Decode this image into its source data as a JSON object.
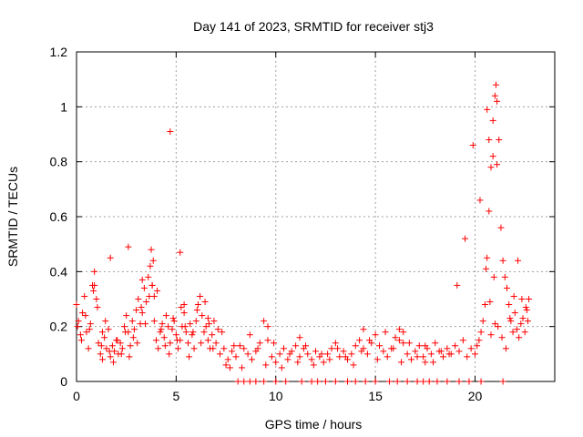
{
  "chart_data": {
    "type": "scatter",
    "title": "Day 141 of 2023, SRMTID for receiver stj3",
    "xlabel": "GPS time / hours",
    "ylabel": "SRMTID / TECUs",
    "xlim": [
      0,
      24
    ],
    "ylim": [
      0,
      1.2
    ],
    "xticks": [
      0,
      5,
      10,
      15,
      20
    ],
    "xtick_labels": [
      "0",
      "5",
      "10",
      "15",
      "20"
    ],
    "yticks": [
      0,
      0.2,
      0.4,
      0.6,
      0.8,
      1.0,
      1.2
    ],
    "ytick_labels": [
      "0",
      "0.2",
      "0.4",
      "0.6",
      "0.8",
      "1",
      "1.2"
    ],
    "grid": true,
    "marker": "+",
    "series": [
      {
        "name": "SRMTID",
        "color": "#ff0000",
        "x": [
          0.0,
          0.1,
          0.2,
          0.3,
          0.4,
          0.5,
          0.6,
          0.7,
          0.8,
          0.9,
          1.0,
          1.1,
          1.2,
          1.3,
          1.4,
          1.5,
          1.6,
          1.7,
          1.8,
          1.9,
          2.0,
          2.1,
          2.2,
          2.3,
          2.4,
          2.5,
          2.6,
          2.7,
          2.8,
          2.9,
          3.0,
          3.1,
          3.2,
          3.3,
          3.4,
          3.5,
          3.6,
          3.7,
          3.8,
          3.9,
          4.0,
          4.1,
          4.2,
          4.3,
          4.4,
          4.5,
          4.6,
          4.7,
          4.8,
          4.9,
          5.0,
          5.1,
          5.2,
          5.3,
          5.4,
          5.5,
          5.6,
          5.7,
          5.8,
          5.9,
          6.0,
          6.1,
          6.2,
          6.3,
          6.4,
          6.5,
          6.6,
          6.7,
          6.8,
          6.9,
          7.0,
          7.2,
          7.4,
          7.6,
          7.8,
          8.0,
          8.2,
          8.4,
          8.6,
          8.8,
          9.0,
          9.2,
          9.4,
          9.6,
          9.8,
          10.0,
          10.2,
          10.4,
          10.6,
          10.8,
          11.0,
          11.2,
          11.4,
          11.6,
          11.8,
          12.0,
          12.2,
          12.4,
          12.6,
          12.8,
          13.0,
          13.2,
          13.4,
          13.6,
          13.8,
          14.0,
          14.2,
          14.4,
          14.6,
          14.8,
          15.0,
          15.2,
          15.4,
          15.6,
          15.8,
          16.0,
          16.2,
          16.4,
          16.6,
          16.8,
          17.0,
          17.2,
          17.4,
          17.6,
          17.8,
          18.0,
          18.2,
          18.4,
          18.6,
          18.8,
          19.0,
          19.2,
          19.4,
          19.6,
          19.8,
          20.0,
          20.1,
          20.2,
          20.3,
          20.4,
          20.5,
          20.6,
          20.7,
          20.8,
          20.9,
          21.0,
          21.1,
          21.2,
          21.3,
          21.4,
          21.5,
          21.6,
          21.7,
          21.8,
          21.9,
          22.0,
          22.1,
          22.2,
          22.3,
          22.4,
          22.5,
          22.6,
          22.7,
          0.05,
          0.25,
          0.45,
          0.65,
          0.85,
          1.05,
          1.25,
          1.45,
          1.65,
          1.85,
          2.05,
          2.25,
          2.45,
          2.65,
          2.85,
          3.05,
          3.25,
          3.45,
          3.65,
          3.75,
          3.85,
          4.05,
          4.25,
          4.45,
          4.65,
          4.85,
          5.05,
          5.25,
          5.45,
          5.65,
          5.85,
          6.05,
          6.25,
          6.45,
          6.65,
          6.85,
          7.1,
          7.5,
          7.9,
          8.3,
          8.7,
          9.1,
          9.5,
          9.9,
          10.3,
          10.7,
          11.1,
          11.5,
          11.9,
          12.3,
          12.7,
          13.1,
          13.5,
          13.9,
          14.3,
          14.7,
          15.1,
          15.5,
          15.9,
          16.3,
          16.7,
          17.1,
          17.5,
          17.9,
          18.3,
          18.7,
          19.1,
          19.5,
          19.9,
          20.25,
          20.55,
          20.75,
          20.95,
          21.15,
          21.35,
          21.55,
          21.75,
          21.95,
          22.15,
          22.35,
          22.55,
          22.65,
          0.9,
          1.3,
          1.7,
          2.6,
          3.3,
          3.8,
          3.9,
          5.4,
          6.6,
          7.3,
          9.6,
          11.2,
          14.4,
          16.2,
          16.4,
          17.5,
          20.8,
          21.0,
          21.1,
          20.7,
          20.9,
          21.05,
          20.6,
          4.7,
          5.2,
          7.7,
          8.1,
          8.4,
          8.7,
          9.0,
          9.4,
          10.0,
          10.5,
          11.3,
          11.8,
          12.1,
          12.5,
          13.0,
          13.6,
          14.0,
          14.5,
          15.0,
          15.7,
          16.1,
          16.6,
          17.1,
          17.4,
          17.7,
          18.1,
          18.6,
          19.2,
          19.7,
          20.3,
          21.4
        ],
        "y": [
          0.28,
          0.22,
          0.17,
          0.25,
          0.31,
          0.18,
          0.12,
          0.21,
          0.35,
          0.4,
          0.3,
          0.14,
          0.1,
          0.08,
          0.16,
          0.12,
          0.19,
          0.09,
          0.13,
          0.11,
          0.15,
          0.1,
          0.14,
          0.12,
          0.2,
          0.24,
          0.18,
          0.13,
          0.22,
          0.19,
          0.26,
          0.3,
          0.21,
          0.25,
          0.34,
          0.29,
          0.38,
          0.42,
          0.35,
          0.22,
          0.15,
          0.12,
          0.18,
          0.21,
          0.16,
          0.24,
          0.2,
          0.14,
          0.19,
          0.22,
          0.17,
          0.12,
          0.15,
          0.2,
          0.25,
          0.18,
          0.14,
          0.21,
          0.17,
          0.12,
          0.22,
          0.28,
          0.31,
          0.24,
          0.18,
          0.2,
          0.15,
          0.12,
          0.17,
          0.22,
          0.14,
          0.1,
          0.12,
          0.08,
          0.11,
          0.09,
          0.13,
          0.12,
          0.1,
          0.08,
          0.11,
          0.14,
          0.22,
          0.15,
          0.09,
          0.07,
          0.1,
          0.12,
          0.08,
          0.11,
          0.13,
          0.09,
          0.12,
          0.1,
          0.08,
          0.11,
          0.09,
          0.07,
          0.1,
          0.12,
          0.14,
          0.09,
          0.11,
          0.08,
          0.1,
          0.13,
          0.15,
          0.12,
          0.1,
          0.14,
          0.17,
          0.13,
          0.11,
          0.09,
          0.12,
          0.16,
          0.19,
          0.14,
          0.1,
          0.08,
          0.11,
          0.13,
          0.09,
          0.12,
          0.1,
          0.14,
          0.11,
          0.09,
          0.12,
          0.1,
          0.13,
          0.11,
          0.15,
          0.09,
          0.12,
          0.1,
          0.13,
          0.15,
          0.18,
          0.22,
          0.28,
          0.45,
          0.62,
          0.78,
          0.95,
          1.04,
          1.02,
          0.88,
          0.56,
          0.44,
          0.38,
          0.34,
          0.28,
          0.22,
          0.18,
          0.25,
          0.19,
          0.16,
          0.21,
          0.23,
          0.18,
          0.26,
          0.3,
          0.2,
          0.15,
          0.24,
          0.19,
          0.33,
          0.27,
          0.13,
          0.22,
          0.11,
          0.07,
          0.15,
          0.1,
          0.18,
          0.09,
          0.16,
          0.14,
          0.27,
          0.21,
          0.31,
          0.48,
          0.44,
          0.33,
          0.19,
          0.13,
          0.1,
          0.23,
          0.15,
          0.27,
          0.2,
          0.09,
          0.18,
          0.26,
          0.14,
          0.29,
          0.21,
          0.12,
          0.19,
          0.06,
          0.13,
          0.05,
          0.17,
          0.12,
          0.06,
          0.14,
          0.05,
          0.1,
          0.07,
          0.13,
          0.06,
          0.1,
          0.08,
          0.12,
          0.09,
          0.06,
          0.11,
          0.15,
          0.08,
          0.18,
          0.12,
          0.07,
          0.14,
          0.09,
          0.13,
          0.07,
          0.11,
          0.1,
          0.35,
          0.52,
          0.86,
          0.66,
          0.41,
          0.29,
          0.38,
          0.2,
          0.16,
          0.12,
          0.23,
          0.31,
          0.44,
          0.3,
          0.27,
          0.22,
          0.35,
          0.18,
          0.45,
          0.49,
          0.37,
          0.35,
          0.31,
          0.28,
          0.23,
          0.18,
          0.2,
          0.16,
          0.19,
          0.15,
          0.18,
          0.07,
          0.17,
          0.21,
          0.79,
          0.88,
          0.82,
          1.08,
          0.99,
          0.91,
          0.47,
          0.05,
          0.0,
          0.0,
          0.0,
          0.0,
          0.0,
          0.0,
          0.0,
          0.0,
          0.0,
          0.0,
          0.0,
          0.0,
          0.0,
          0.0,
          0.0,
          0.0,
          0.0,
          0.0,
          0.0,
          0.0,
          0.0,
          0.0,
          0.0,
          0.0,
          0.0,
          0.0,
          0.0,
          0.0
        ]
      }
    ]
  }
}
